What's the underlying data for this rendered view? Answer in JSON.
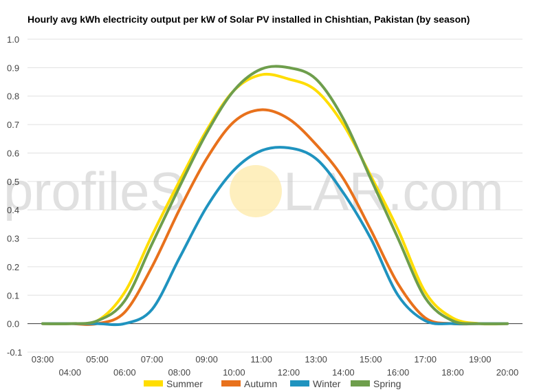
{
  "chart_data": {
    "type": "line",
    "title": "Hourly avg kWh electricity output per kW of Solar PV installed in Chishtian, Pakistan (by season)",
    "xlabel": "",
    "ylabel": "",
    "ylim": [
      -0.1,
      1.0
    ],
    "yticks": [
      "-0.1",
      "0.0",
      "0.1",
      "0.2",
      "0.3",
      "0.4",
      "0.5",
      "0.6",
      "0.7",
      "0.8",
      "0.9",
      "1.0"
    ],
    "x": [
      "03:00",
      "04:00",
      "05:00",
      "06:00",
      "07:00",
      "08:00",
      "09:00",
      "10:00",
      "11:00",
      "12:00",
      "13:00",
      "14:00",
      "15:00",
      "16:00",
      "17:00",
      "18:00",
      "19:00",
      "20:00"
    ],
    "grid": true,
    "legend_position": "bottom",
    "series": [
      {
        "name": "Summer",
        "color": "#ffdd00",
        "values": [
          0.0,
          0.0,
          0.01,
          0.11,
          0.31,
          0.5,
          0.68,
          0.82,
          0.875,
          0.86,
          0.82,
          0.7,
          0.52,
          0.33,
          0.11,
          0.02,
          0.0,
          0.0
        ]
      },
      {
        "name": "Autumn",
        "color": "#e8711c",
        "values": [
          0.0,
          0.0,
          0.0,
          0.04,
          0.2,
          0.4,
          0.58,
          0.71,
          0.752,
          0.72,
          0.63,
          0.51,
          0.33,
          0.14,
          0.02,
          0.0,
          0.0,
          0.0
        ]
      },
      {
        "name": "Winter",
        "color": "#1f93bf",
        "values": [
          0.0,
          0.0,
          0.0,
          0.0,
          0.05,
          0.23,
          0.41,
          0.54,
          0.608,
          0.618,
          0.58,
          0.46,
          0.3,
          0.1,
          0.01,
          0.0,
          0.0,
          0.0
        ]
      },
      {
        "name": "Spring",
        "color": "#6e9e4c",
        "values": [
          0.0,
          0.0,
          0.01,
          0.08,
          0.28,
          0.48,
          0.67,
          0.82,
          0.895,
          0.9,
          0.86,
          0.72,
          0.51,
          0.3,
          0.09,
          0.01,
          0.0,
          0.0
        ]
      }
    ]
  },
  "watermark": {
    "left": "profileS",
    "right": "LAR.com",
    "sun_color": "#fde9a8"
  }
}
